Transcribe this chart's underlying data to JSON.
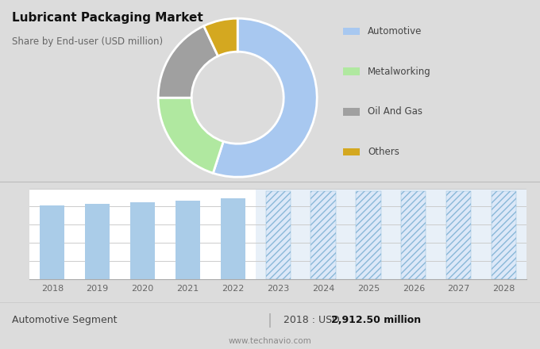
{
  "title": "Lubricant Packaging Market",
  "subtitle": "Share by End-user (USD million)",
  "bg_color_top": "#dcdcdc",
  "bg_color_bottom": "#ffffff",
  "donut_labels": [
    "Automotive",
    "Metalworking",
    "Oil And Gas",
    "Others"
  ],
  "donut_values": [
    55,
    20,
    18,
    7
  ],
  "donut_colors": [
    "#a8c8f0",
    "#b0e8a0",
    "#a0a0a0",
    "#d4a820"
  ],
  "bar_years_solid": [
    2018,
    2019,
    2020,
    2021,
    2022
  ],
  "bar_values_solid": [
    2912.5,
    2980,
    3050,
    3120,
    3200
  ],
  "bar_years_hatched": [
    2023,
    2024,
    2025,
    2026,
    2027,
    2028
  ],
  "bar_color_solid": "#aacce8",
  "bar_color_hatched_face": "#dce8f8",
  "bar_color_hatched_edge": "#8ab8d8",
  "hatch_pattern": "////",
  "bar_ylim_max": 3600,
  "forecast_bar_height": 3500,
  "footer_left": "Automotive Segment",
  "footer_right_label": "2018 : USD ",
  "footer_right_value": "2,912.50 million",
  "footer_url": "www.technavio.com",
  "grid_color": "#cccccc",
  "forecast_bg_color": "#e8f0f8"
}
